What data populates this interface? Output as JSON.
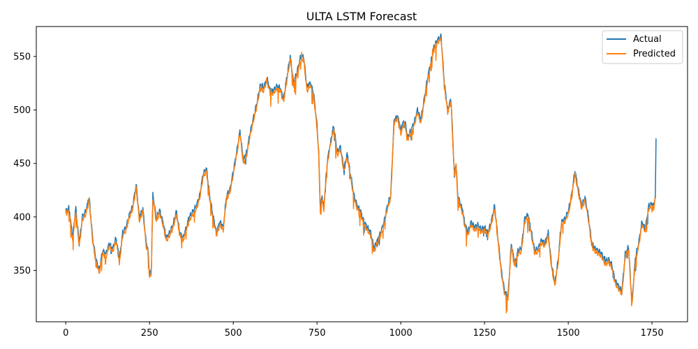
{
  "chart_data": {
    "type": "line",
    "title": "ULTA LSTM Forecast",
    "xlabel": "",
    "ylabel": "",
    "xlim": [
      -88,
      1856
    ],
    "ylim": [
      302,
      578
    ],
    "xticks": [
      0,
      250,
      500,
      750,
      1000,
      1250,
      1500,
      1750
    ],
    "yticks": [
      350,
      400,
      450,
      500,
      550
    ],
    "grid": false,
    "legend_position": "top-right",
    "colors": {
      "Actual": "#1f77b4",
      "Predicted": "#ff7f0e"
    },
    "anchors": {
      "x": [
        0,
        10,
        20,
        30,
        40,
        50,
        60,
        70,
        80,
        90,
        100,
        110,
        120,
        130,
        140,
        150,
        160,
        170,
        180,
        190,
        200,
        210,
        220,
        230,
        240,
        245,
        250,
        255,
        260,
        265,
        270,
        280,
        290,
        300,
        310,
        320,
        330,
        340,
        350,
        360,
        370,
        380,
        390,
        400,
        410,
        420,
        430,
        440,
        450,
        460,
        470,
        480,
        490,
        500,
        510,
        520,
        530,
        540,
        550,
        560,
        570,
        580,
        590,
        600,
        610,
        620,
        630,
        640,
        650,
        660,
        670,
        680,
        690,
        700,
        710,
        720,
        730,
        740,
        750,
        755,
        760,
        765,
        770,
        780,
        790,
        800,
        810,
        820,
        830,
        840,
        850,
        860,
        870,
        880,
        890,
        900,
        910,
        920,
        930,
        940,
        950,
        960,
        970,
        980,
        990,
        1000,
        1010,
        1015,
        1020,
        1030,
        1040,
        1050,
        1060,
        1070,
        1080,
        1090,
        1100,
        1110,
        1120,
        1130,
        1140,
        1150,
        1160,
        1165,
        1170,
        1180,
        1185,
        1190,
        1200,
        1210,
        1220,
        1230,
        1240,
        1250,
        1260,
        1270,
        1280,
        1290,
        1300,
        1310,
        1320,
        1330,
        1340,
        1350,
        1360,
        1370,
        1380,
        1390,
        1400,
        1410,
        1420,
        1430,
        1440,
        1450,
        1460,
        1470,
        1480,
        1490,
        1500,
        1510,
        1520,
        1530,
        1540,
        1550,
        1560,
        1570,
        1580,
        1590,
        1600,
        1610,
        1620,
        1630,
        1640,
        1650,
        1660,
        1670,
        1680,
        1690,
        1700,
        1710,
        1720,
        1730,
        1740,
        1750,
        1755,
        1760,
        1762
      ],
      "actual": [
        405,
        408,
        380,
        408,
        375,
        400,
        405,
        418,
        380,
        360,
        350,
        368,
        365,
        375,
        370,
        380,
        360,
        385,
        390,
        402,
        410,
        430,
        398,
        408,
        375,
        370,
        345,
        350,
        420,
        410,
        398,
        406,
        395,
        380,
        385,
        392,
        405,
        385,
        380,
        390,
        400,
        405,
        410,
        420,
        440,
        445,
        418,
        400,
        385,
        395,
        390,
        420,
        425,
        442,
        460,
        480,
        452,
        460,
        478,
        492,
        505,
        522,
        520,
        530,
        518,
        518,
        522,
        520,
        510,
        530,
        550,
        525,
        535,
        548,
        550,
        520,
        525,
        515,
        485,
        460,
        405,
        420,
        408,
        450,
        470,
        485,
        460,
        465,
        445,
        458,
        440,
        420,
        410,
        405,
        395,
        390,
        385,
        370,
        378,
        385,
        395,
        410,
        420,
        490,
        495,
        480,
        490,
        485,
        475,
        480,
        488,
        500,
        490,
        510,
        530,
        545,
        560,
        565,
        570,
        525,
        500,
        510,
        440,
        450,
        420,
        410,
        405,
        395,
        385,
        395,
        390,
        392,
        388,
        390,
        385,
        395,
        410,
        380,
        350,
        330,
        325,
        375,
        355,
        368,
        370,
        398,
        402,
        385,
        368,
        370,
        378,
        375,
        385,
        355,
        338,
        360,
        395,
        398,
        405,
        420,
        443,
        425,
        410,
        418,
        400,
        375,
        370,
        368,
        365,
        358,
        360,
        355,
        340,
        335,
        330,
        365,
        372,
        320,
        360,
        375,
        395,
        388,
        410,
        412,
        410,
        420,
        472
      ]
    },
    "series": [
      {
        "name": "Actual",
        "color": "#1f77b4",
        "phase": 0,
        "offset": 0.4,
        "noise_amp": 2.8,
        "spike_prob": 0.025,
        "spike_amp": 7
      },
      {
        "name": "Predicted",
        "color": "#ff7f0e",
        "phase": 2.1,
        "offset": -2.4,
        "noise_amp": 2.4,
        "spike_prob": 0.035,
        "spike_amp": 9
      }
    ]
  }
}
